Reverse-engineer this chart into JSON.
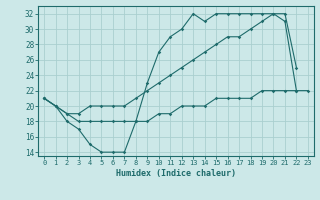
{
  "xlabel": "Humidex (Indice chaleur)",
  "bg_color": "#cce8e8",
  "grid_color": "#aacfcf",
  "line_color": "#1e6b6b",
  "xlim": [
    -0.5,
    23.5
  ],
  "ylim": [
    13.5,
    33
  ],
  "yticks": [
    14,
    16,
    18,
    20,
    22,
    24,
    26,
    28,
    30,
    32
  ],
  "xticks": [
    0,
    1,
    2,
    3,
    4,
    5,
    6,
    7,
    8,
    9,
    10,
    11,
    12,
    13,
    14,
    15,
    16,
    17,
    18,
    19,
    20,
    21,
    22,
    23
  ],
  "line1_x": [
    0,
    1,
    2,
    3,
    4,
    5,
    6,
    7,
    8,
    9,
    10,
    11,
    12,
    13,
    14,
    15,
    16,
    17,
    18,
    19,
    20,
    21,
    22
  ],
  "line1_y": [
    21,
    20,
    18,
    17,
    15,
    14,
    14,
    14,
    18,
    23,
    27,
    29,
    30,
    32,
    31,
    32,
    32,
    32,
    32,
    32,
    32,
    31,
    22
  ],
  "line2_x": [
    0,
    1,
    2,
    3,
    4,
    5,
    6,
    7,
    8,
    9,
    10,
    11,
    12,
    13,
    14,
    15,
    16,
    17,
    18,
    19,
    20,
    21,
    22
  ],
  "line2_y": [
    21,
    20,
    19,
    19,
    20,
    20,
    20,
    20,
    21,
    22,
    23,
    24,
    25,
    26,
    27,
    28,
    29,
    29,
    30,
    31,
    32,
    32,
    25
  ],
  "line3_x": [
    0,
    1,
    2,
    3,
    4,
    5,
    6,
    7,
    8,
    9,
    10,
    11,
    12,
    13,
    14,
    15,
    16,
    17,
    18,
    19,
    20,
    21,
    22,
    23
  ],
  "line3_y": [
    21,
    20,
    19,
    18,
    18,
    18,
    18,
    18,
    18,
    18,
    19,
    19,
    20,
    20,
    20,
    21,
    21,
    21,
    21,
    22,
    22,
    22,
    22,
    22
  ]
}
